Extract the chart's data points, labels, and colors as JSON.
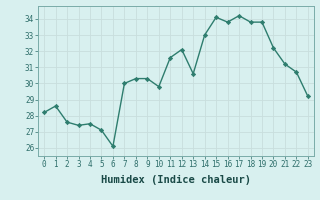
{
  "x": [
    0,
    1,
    2,
    3,
    4,
    5,
    6,
    7,
    8,
    9,
    10,
    11,
    12,
    13,
    14,
    15,
    16,
    17,
    18,
    19,
    20,
    21,
    22,
    23
  ],
  "y": [
    28.2,
    28.6,
    27.6,
    27.4,
    27.5,
    27.1,
    26.1,
    30.0,
    30.3,
    30.3,
    29.8,
    31.6,
    32.1,
    30.6,
    33.0,
    34.1,
    33.8,
    34.2,
    33.8,
    33.8,
    32.2,
    31.2,
    30.7,
    29.2
  ],
  "line_color": "#2e7d6e",
  "marker": "D",
  "marker_size": 2.2,
  "bg_color": "#d8f0ef",
  "grid_color": "#c8dedd",
  "xlabel": "Humidex (Indice chaleur)",
  "xlim": [
    -0.5,
    23.5
  ],
  "ylim": [
    25.5,
    34.8
  ],
  "yticks": [
    26,
    27,
    28,
    29,
    30,
    31,
    32,
    33,
    34
  ],
  "xticks": [
    0,
    1,
    2,
    3,
    4,
    5,
    6,
    7,
    8,
    9,
    10,
    11,
    12,
    13,
    14,
    15,
    16,
    17,
    18,
    19,
    20,
    21,
    22,
    23
  ],
  "tick_fontsize": 5.5,
  "xlabel_fontsize": 7.5,
  "line_width": 1.0
}
